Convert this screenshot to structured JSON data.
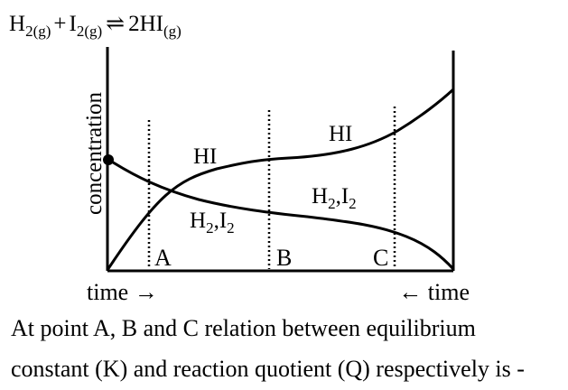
{
  "equation": {
    "reactant_1": "H",
    "reactant_1_sub": "2(g)",
    "plus": "+",
    "reactant_2": "I",
    "reactant_2_sub": "2(g)",
    "arrow": "⇌",
    "product": "2HI",
    "product_sub": "(g)"
  },
  "graph": {
    "y_axis_label": "concentration",
    "x_label_left": "time →",
    "x_label_right": "← time",
    "curve_labels": {
      "hi_left": "HI",
      "hi_right": "HI",
      "h2i2_left": {
        "a": "H",
        "sub1": "2",
        "mid": ",I",
        "sub2": "2"
      },
      "h2i2_right": {
        "a": "H",
        "sub1": "2",
        "mid": ",I",
        "sub2": "2"
      }
    },
    "points": [
      "A",
      "B",
      "C"
    ]
  },
  "question": {
    "line_1": "At point A, B and C relation between equilibrium",
    "line_2": "constant (K) and reaction quotient (Q) respectively is -"
  }
}
